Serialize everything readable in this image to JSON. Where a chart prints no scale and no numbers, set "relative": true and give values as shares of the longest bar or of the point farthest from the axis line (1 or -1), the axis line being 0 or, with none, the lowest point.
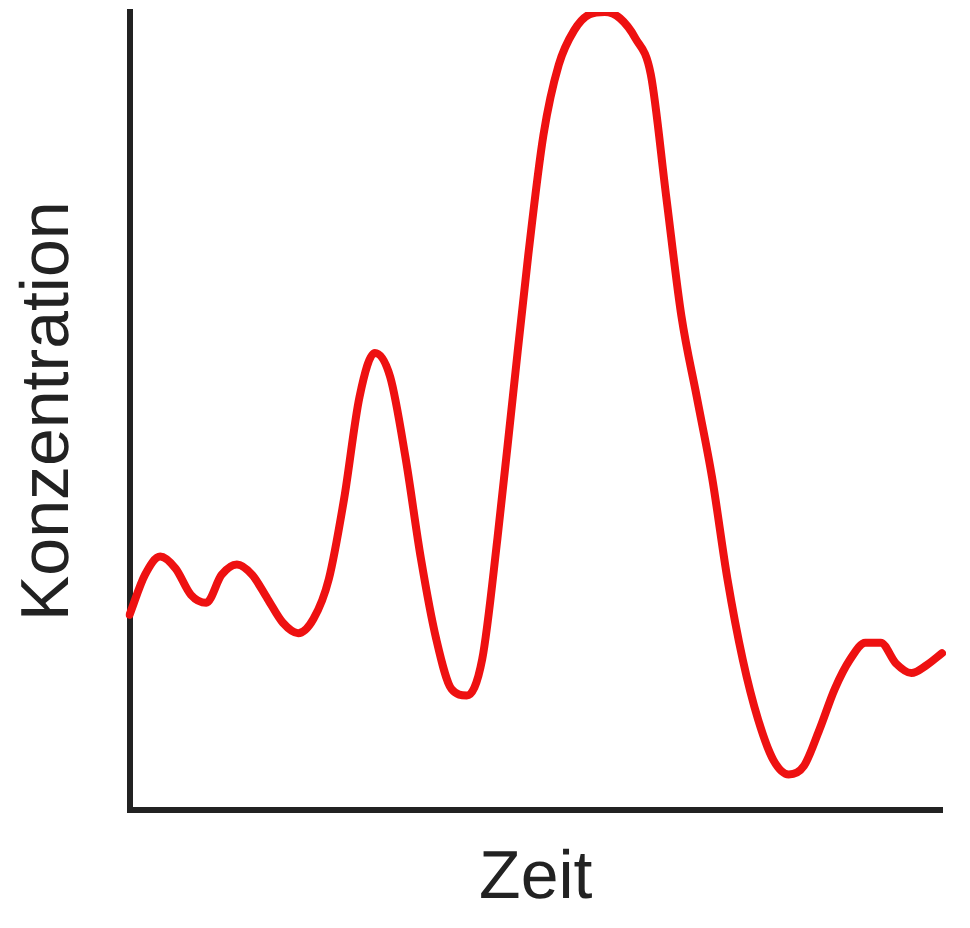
{
  "chart_data": {
    "type": "line",
    "relative": true,
    "xlabel": "Zeit",
    "ylabel": "Konzentration",
    "categories": [
      null,
      null,
      null,
      null,
      null,
      null,
      null,
      null,
      null,
      null,
      null,
      null,
      null,
      null,
      null,
      null,
      null,
      null,
      null,
      null,
      null,
      null,
      null,
      null,
      null,
      null,
      null,
      null,
      null,
      null,
      null,
      null,
      null,
      null,
      null,
      null,
      null,
      null,
      null,
      null,
      null,
      null,
      null,
      null,
      null,
      null,
      null,
      null,
      null,
      null,
      null,
      null,
      null,
      null
    ],
    "series": [
      {
        "color": "#ee1111",
        "values": [
          0.245,
          0.295,
          0.318,
          0.303,
          0.27,
          0.26,
          0.295,
          0.308,
          0.295,
          0.265,
          0.235,
          0.222,
          0.24,
          0.29,
          0.391,
          0.518,
          0.573,
          0.543,
          0.442,
          0.316,
          0.215,
          0.152,
          0.144,
          0.189,
          0.341,
          0.518,
          0.694,
          0.846,
          0.934,
          0.977,
          0.997,
          1,
          0.992,
          0.967,
          0.922,
          0.77,
          0.619,
          0.518,
          0.417,
          0.29,
          0.189,
          0.114,
          0.063,
          0.045,
          0.056,
          0.101,
          0.152,
          0.189,
          0.21,
          0.21,
          0.184,
          0.172,
          0.182,
          0.197
        ]
      }
    ],
    "grid": false,
    "legend": false,
    "marker": "none",
    "line_style": "solid"
  }
}
